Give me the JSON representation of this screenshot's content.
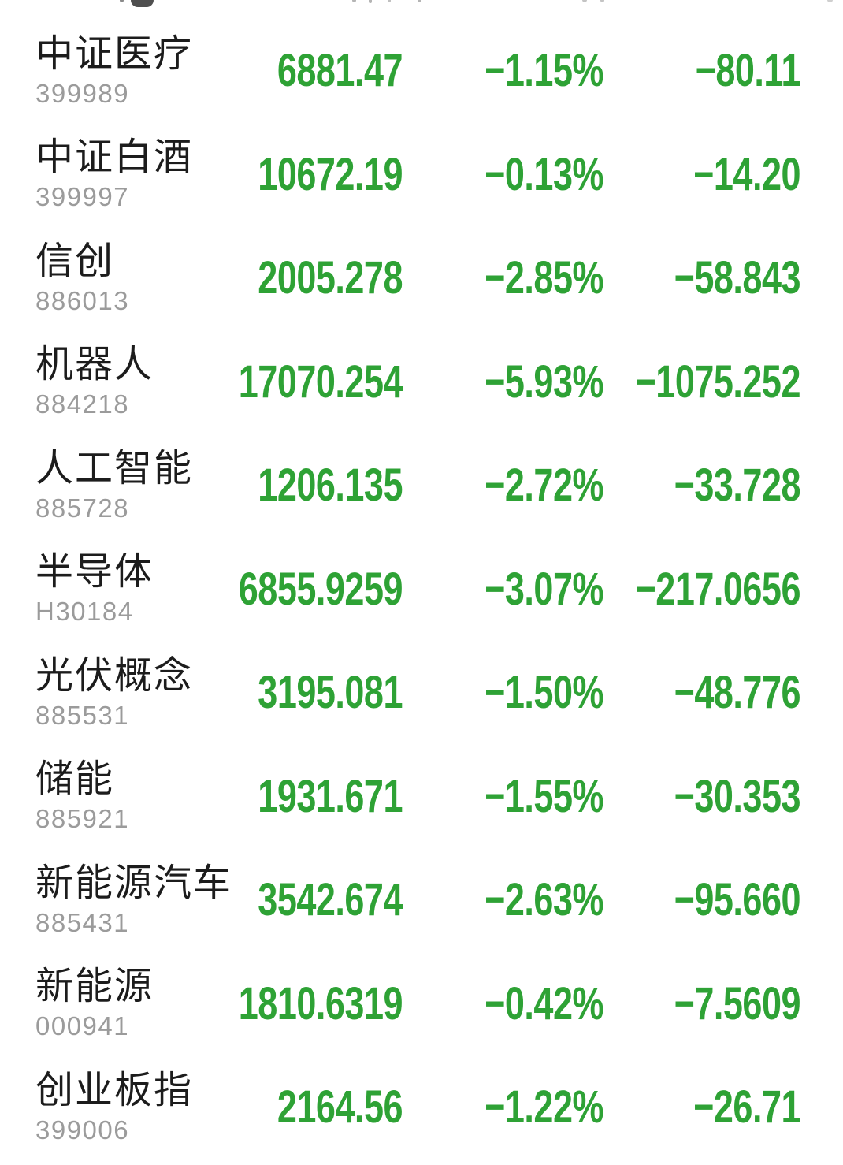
{
  "colors": {
    "down_green": "#2ea235",
    "name_text": "#1c1c1c",
    "code_text": "#9b9b9b",
    "background": "#ffffff"
  },
  "list": {
    "columns": [
      "name",
      "code",
      "last_value",
      "change_percent",
      "change_amount"
    ],
    "rows": [
      {
        "name": "中证医疗",
        "code": "399989",
        "value": "6881.47",
        "change_pct": "-1.15%",
        "change_amt": "-80.11"
      },
      {
        "name": "中证白酒",
        "code": "399997",
        "value": "10672.19",
        "change_pct": "-0.13%",
        "change_amt": "-14.20"
      },
      {
        "name": "信创",
        "code": "886013",
        "value": "2005.278",
        "change_pct": "-2.85%",
        "change_amt": "-58.843"
      },
      {
        "name": "机器人",
        "code": "884218",
        "value": "17070.254",
        "change_pct": "-5.93%",
        "change_amt": "-1075.252"
      },
      {
        "name": "人工智能",
        "code": "885728",
        "value": "1206.135",
        "change_pct": "-2.72%",
        "change_amt": "-33.728"
      },
      {
        "name": "半导体",
        "code": "H30184",
        "value": "6855.9259",
        "change_pct": "-3.07%",
        "change_amt": "-217.0656"
      },
      {
        "name": "光伏概念",
        "code": "885531",
        "value": "3195.081",
        "change_pct": "-1.50%",
        "change_amt": "-48.776"
      },
      {
        "name": "储能",
        "code": "885921",
        "value": "1931.671",
        "change_pct": "-1.55%",
        "change_amt": "-30.353"
      },
      {
        "name": "新能源汽车",
        "code": "885431",
        "value": "3542.674",
        "change_pct": "-2.63%",
        "change_amt": "-95.660"
      },
      {
        "name": "新能源",
        "code": "000941",
        "value": "1810.6319",
        "change_pct": "-0.42%",
        "change_amt": "-7.5609"
      },
      {
        "name": "创业板指",
        "code": "399006",
        "value": "2164.56",
        "change_pct": "-1.22%",
        "change_amt": "-26.71"
      }
    ]
  }
}
